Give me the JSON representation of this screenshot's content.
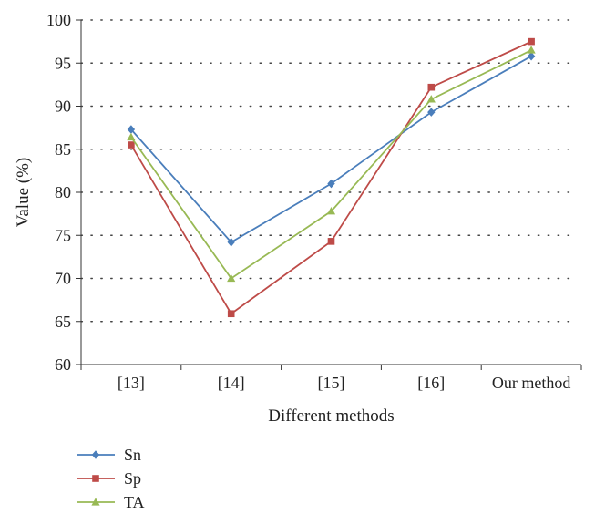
{
  "chart_data": {
    "type": "line",
    "title": "",
    "xlabel": "Different methods",
    "ylabel": "Value (%)",
    "categories": [
      "[13]",
      "[14]",
      "[15]",
      "[16]",
      "Our method"
    ],
    "ylim": [
      60,
      100
    ],
    "yticks": [
      60,
      65,
      70,
      75,
      80,
      85,
      90,
      95,
      100
    ],
    "grid": "horizontal-dotted",
    "legend_position": "bottom-left",
    "series": [
      {
        "name": "Sn",
        "color": "#4a7ebb",
        "marker": "diamond",
        "values": [
          87.3,
          74.2,
          81.0,
          89.3,
          95.8
        ]
      },
      {
        "name": "Sp",
        "color": "#be4b48",
        "marker": "square",
        "values": [
          85.5,
          65.9,
          74.3,
          92.2,
          97.5
        ]
      },
      {
        "name": "TA",
        "color": "#98b954",
        "marker": "triangle",
        "values": [
          86.4,
          70.0,
          77.8,
          90.8,
          96.5
        ]
      }
    ]
  }
}
